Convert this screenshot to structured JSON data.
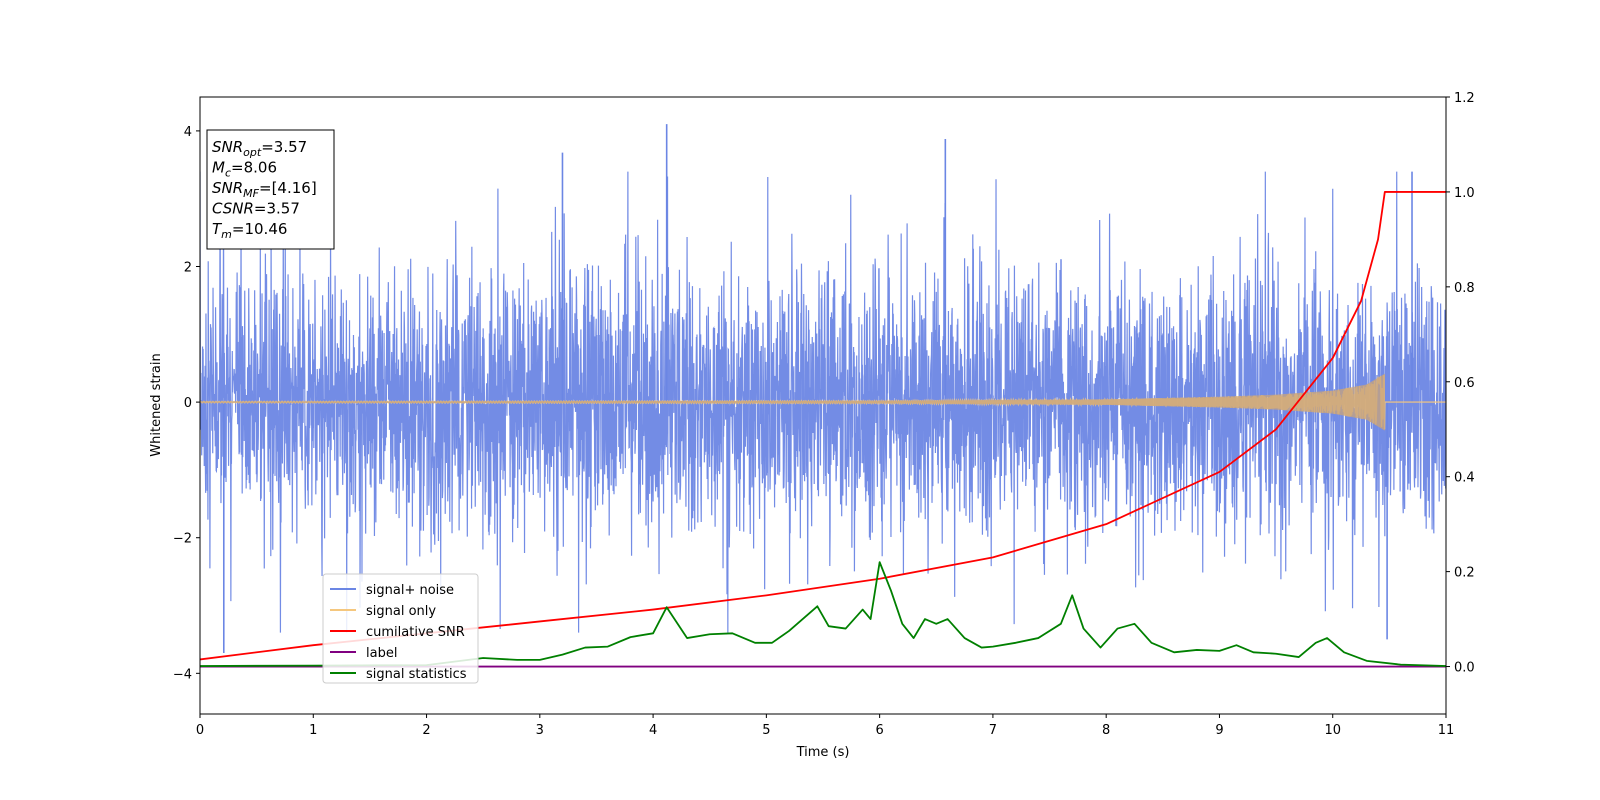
{
  "chart_data": {
    "type": "line",
    "xlabel": "Time (s)",
    "ylabel_left": "Whitened strain",
    "ylabel_right": "",
    "xlim": [
      0,
      11
    ],
    "ylim_left": [
      -4.6,
      4.5
    ],
    "ylim_right": [
      -0.1,
      1.2
    ],
    "x_ticks": [
      "0",
      "1",
      "2",
      "3",
      "4",
      "5",
      "6",
      "7",
      "8",
      "9",
      "10",
      "11"
    ],
    "y_ticks_left": [
      "4",
      "2",
      "0",
      "−2",
      "−4"
    ],
    "y_ticks_right": [
      "1.2",
      "1.0",
      "0.8",
      "0.6",
      "0.4",
      "0.2",
      "0.0"
    ],
    "grid": false,
    "legend_position": "lower-left",
    "series": [
      {
        "name": "signal+ noise",
        "axis": "left",
        "color": "#6b86e4",
        "description_amplitude_range": [
          -3.7,
          4.1
        ],
        "notable_peaks": [
          {
            "x": 0.21,
            "y": -3.7
          },
          {
            "x": 3.2,
            "y": 3.68
          },
          {
            "x": 4.12,
            "y": 4.1
          },
          {
            "x": 6.58,
            "y": 3.88
          },
          {
            "x": 10.7,
            "y": 3.4
          },
          {
            "x": 10.48,
            "y": -3.5
          }
        ]
      },
      {
        "name": "signal only",
        "axis": "left",
        "color": "#f5c77e",
        "envelope": [
          {
            "x": 0,
            "y": 0.01
          },
          {
            "x": 6.0,
            "y": 0.02
          },
          {
            "x": 8.0,
            "y": 0.04
          },
          {
            "x": 9.0,
            "y": 0.08
          },
          {
            "x": 9.5,
            "y": 0.11
          },
          {
            "x": 10.0,
            "y": 0.17
          },
          {
            "x": 10.3,
            "y": 0.26
          },
          {
            "x": 10.46,
            "y": 0.42
          }
        ]
      },
      {
        "name": "cumilative SNR",
        "axis": "right",
        "color": "#ff0000",
        "points": [
          {
            "x": 0,
            "y": 0.015
          },
          {
            "x": 1,
            "y": 0.045
          },
          {
            "x": 2,
            "y": 0.07
          },
          {
            "x": 3,
            "y": 0.095
          },
          {
            "x": 4,
            "y": 0.12
          },
          {
            "x": 5,
            "y": 0.15
          },
          {
            "x": 6,
            "y": 0.185
          },
          {
            "x": 7,
            "y": 0.23
          },
          {
            "x": 8,
            "y": 0.3
          },
          {
            "x": 9,
            "y": 0.41
          },
          {
            "x": 9.5,
            "y": 0.5
          },
          {
            "x": 10,
            "y": 0.65
          },
          {
            "x": 10.25,
            "y": 0.77
          },
          {
            "x": 10.4,
            "y": 0.9
          },
          {
            "x": 10.46,
            "y": 1.0
          },
          {
            "x": 11,
            "y": 1.0
          }
        ]
      },
      {
        "name": "label",
        "axis": "right",
        "color": "#800080",
        "points": [
          {
            "x": 0,
            "y": 0.0
          },
          {
            "x": 11,
            "y": 0.0
          }
        ]
      },
      {
        "name": "signal statistics",
        "axis": "right",
        "color": "#008000",
        "points": [
          {
            "x": 0.0,
            "y": 0.001
          },
          {
            "x": 1.0,
            "y": 0.002
          },
          {
            "x": 2.0,
            "y": 0.003
          },
          {
            "x": 2.5,
            "y": 0.018
          },
          {
            "x": 2.8,
            "y": 0.014
          },
          {
            "x": 3.0,
            "y": 0.014
          },
          {
            "x": 3.2,
            "y": 0.025
          },
          {
            "x": 3.4,
            "y": 0.04
          },
          {
            "x": 3.6,
            "y": 0.042
          },
          {
            "x": 3.8,
            "y": 0.062
          },
          {
            "x": 4.0,
            "y": 0.07
          },
          {
            "x": 4.12,
            "y": 0.125
          },
          {
            "x": 4.3,
            "y": 0.06
          },
          {
            "x": 4.5,
            "y": 0.068
          },
          {
            "x": 4.7,
            "y": 0.07
          },
          {
            "x": 4.9,
            "y": 0.05
          },
          {
            "x": 5.05,
            "y": 0.05
          },
          {
            "x": 5.2,
            "y": 0.075
          },
          {
            "x": 5.45,
            "y": 0.127
          },
          {
            "x": 5.55,
            "y": 0.085
          },
          {
            "x": 5.7,
            "y": 0.08
          },
          {
            "x": 5.85,
            "y": 0.12
          },
          {
            "x": 5.92,
            "y": 0.1
          },
          {
            "x": 6.0,
            "y": 0.22
          },
          {
            "x": 6.1,
            "y": 0.16
          },
          {
            "x": 6.2,
            "y": 0.09
          },
          {
            "x": 6.3,
            "y": 0.06
          },
          {
            "x": 6.4,
            "y": 0.1
          },
          {
            "x": 6.5,
            "y": 0.09
          },
          {
            "x": 6.6,
            "y": 0.1
          },
          {
            "x": 6.75,
            "y": 0.06
          },
          {
            "x": 6.9,
            "y": 0.04
          },
          {
            "x": 7.0,
            "y": 0.042
          },
          {
            "x": 7.2,
            "y": 0.05
          },
          {
            "x": 7.4,
            "y": 0.06
          },
          {
            "x": 7.6,
            "y": 0.09
          },
          {
            "x": 7.7,
            "y": 0.15
          },
          {
            "x": 7.8,
            "y": 0.08
          },
          {
            "x": 7.95,
            "y": 0.04
          },
          {
            "x": 8.1,
            "y": 0.08
          },
          {
            "x": 8.25,
            "y": 0.09
          },
          {
            "x": 8.4,
            "y": 0.05
          },
          {
            "x": 8.6,
            "y": 0.03
          },
          {
            "x": 8.8,
            "y": 0.035
          },
          {
            "x": 9.0,
            "y": 0.033
          },
          {
            "x": 9.15,
            "y": 0.045
          },
          {
            "x": 9.3,
            "y": 0.03
          },
          {
            "x": 9.5,
            "y": 0.027
          },
          {
            "x": 9.7,
            "y": 0.02
          },
          {
            "x": 9.85,
            "y": 0.05
          },
          {
            "x": 9.95,
            "y": 0.06
          },
          {
            "x": 10.1,
            "y": 0.03
          },
          {
            "x": 10.3,
            "y": 0.012
          },
          {
            "x": 10.6,
            "y": 0.004
          },
          {
            "x": 11.0,
            "y": 0.001
          }
        ]
      }
    ]
  },
  "stats_box": {
    "lines": [
      {
        "main": "SNR",
        "sub": "opt",
        "value": "=3.57"
      },
      {
        "main": "M",
        "sub": "c",
        "value": "=8.06"
      },
      {
        "main": "SNR",
        "sub": "MF",
        "value": "=[4.16]"
      },
      {
        "main": "CSNR",
        "sub": "",
        "value": "=3.57"
      },
      {
        "main": "T",
        "sub": "m",
        "value": "=10.46"
      }
    ]
  },
  "legend": {
    "items": [
      {
        "label": "signal+ noise",
        "color": "#6b86e4"
      },
      {
        "label": "signal only",
        "color": "#f5c77e"
      },
      {
        "label": "cumilative SNR",
        "color": "#ff0000"
      },
      {
        "label": "label",
        "color": "#800080"
      },
      {
        "label": "signal statistics",
        "color": "#008000"
      }
    ]
  }
}
